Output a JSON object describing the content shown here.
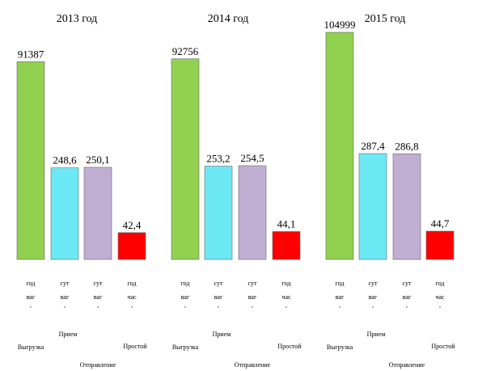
{
  "chart_data": {
    "type": "bar",
    "groups": [
      {
        "title": "2013 год",
        "values": [
          91387,
          248.6,
          250.1,
          42.4
        ],
        "labels": [
          "91387",
          "248,6",
          "250,1",
          "42,4"
        ]
      },
      {
        "title": "2014 год",
        "values": [
          92756,
          253.2,
          254.5,
          44.1
        ],
        "labels": [
          "92756",
          "253,2",
          "254,5",
          "44,1"
        ]
      },
      {
        "title": "2015 год",
        "values": [
          104999,
          287.4,
          286.8,
          44.7
        ],
        "labels": [
          "104999",
          "287,4",
          "286,8",
          "44,7"
        ]
      }
    ],
    "bar_colors": [
      "#92d050",
      "#6de8f5",
      "#c0aed3",
      "#ff0000"
    ],
    "categories": [
      "Выгрузка",
      "Прием",
      "Отправление",
      "Простой"
    ],
    "units": [
      [
        "год",
        "ваг",
        ","
      ],
      [
        "сут",
        "ваг",
        ","
      ],
      [
        "сут",
        "ваг",
        ","
      ],
      [
        "год",
        "час",
        ","
      ]
    ],
    "scale_ranges": [
      [
        0,
        104999
      ],
      [
        0,
        287.4
      ],
      [
        0,
        287.4
      ],
      [
        0,
        44.7
      ]
    ]
  }
}
